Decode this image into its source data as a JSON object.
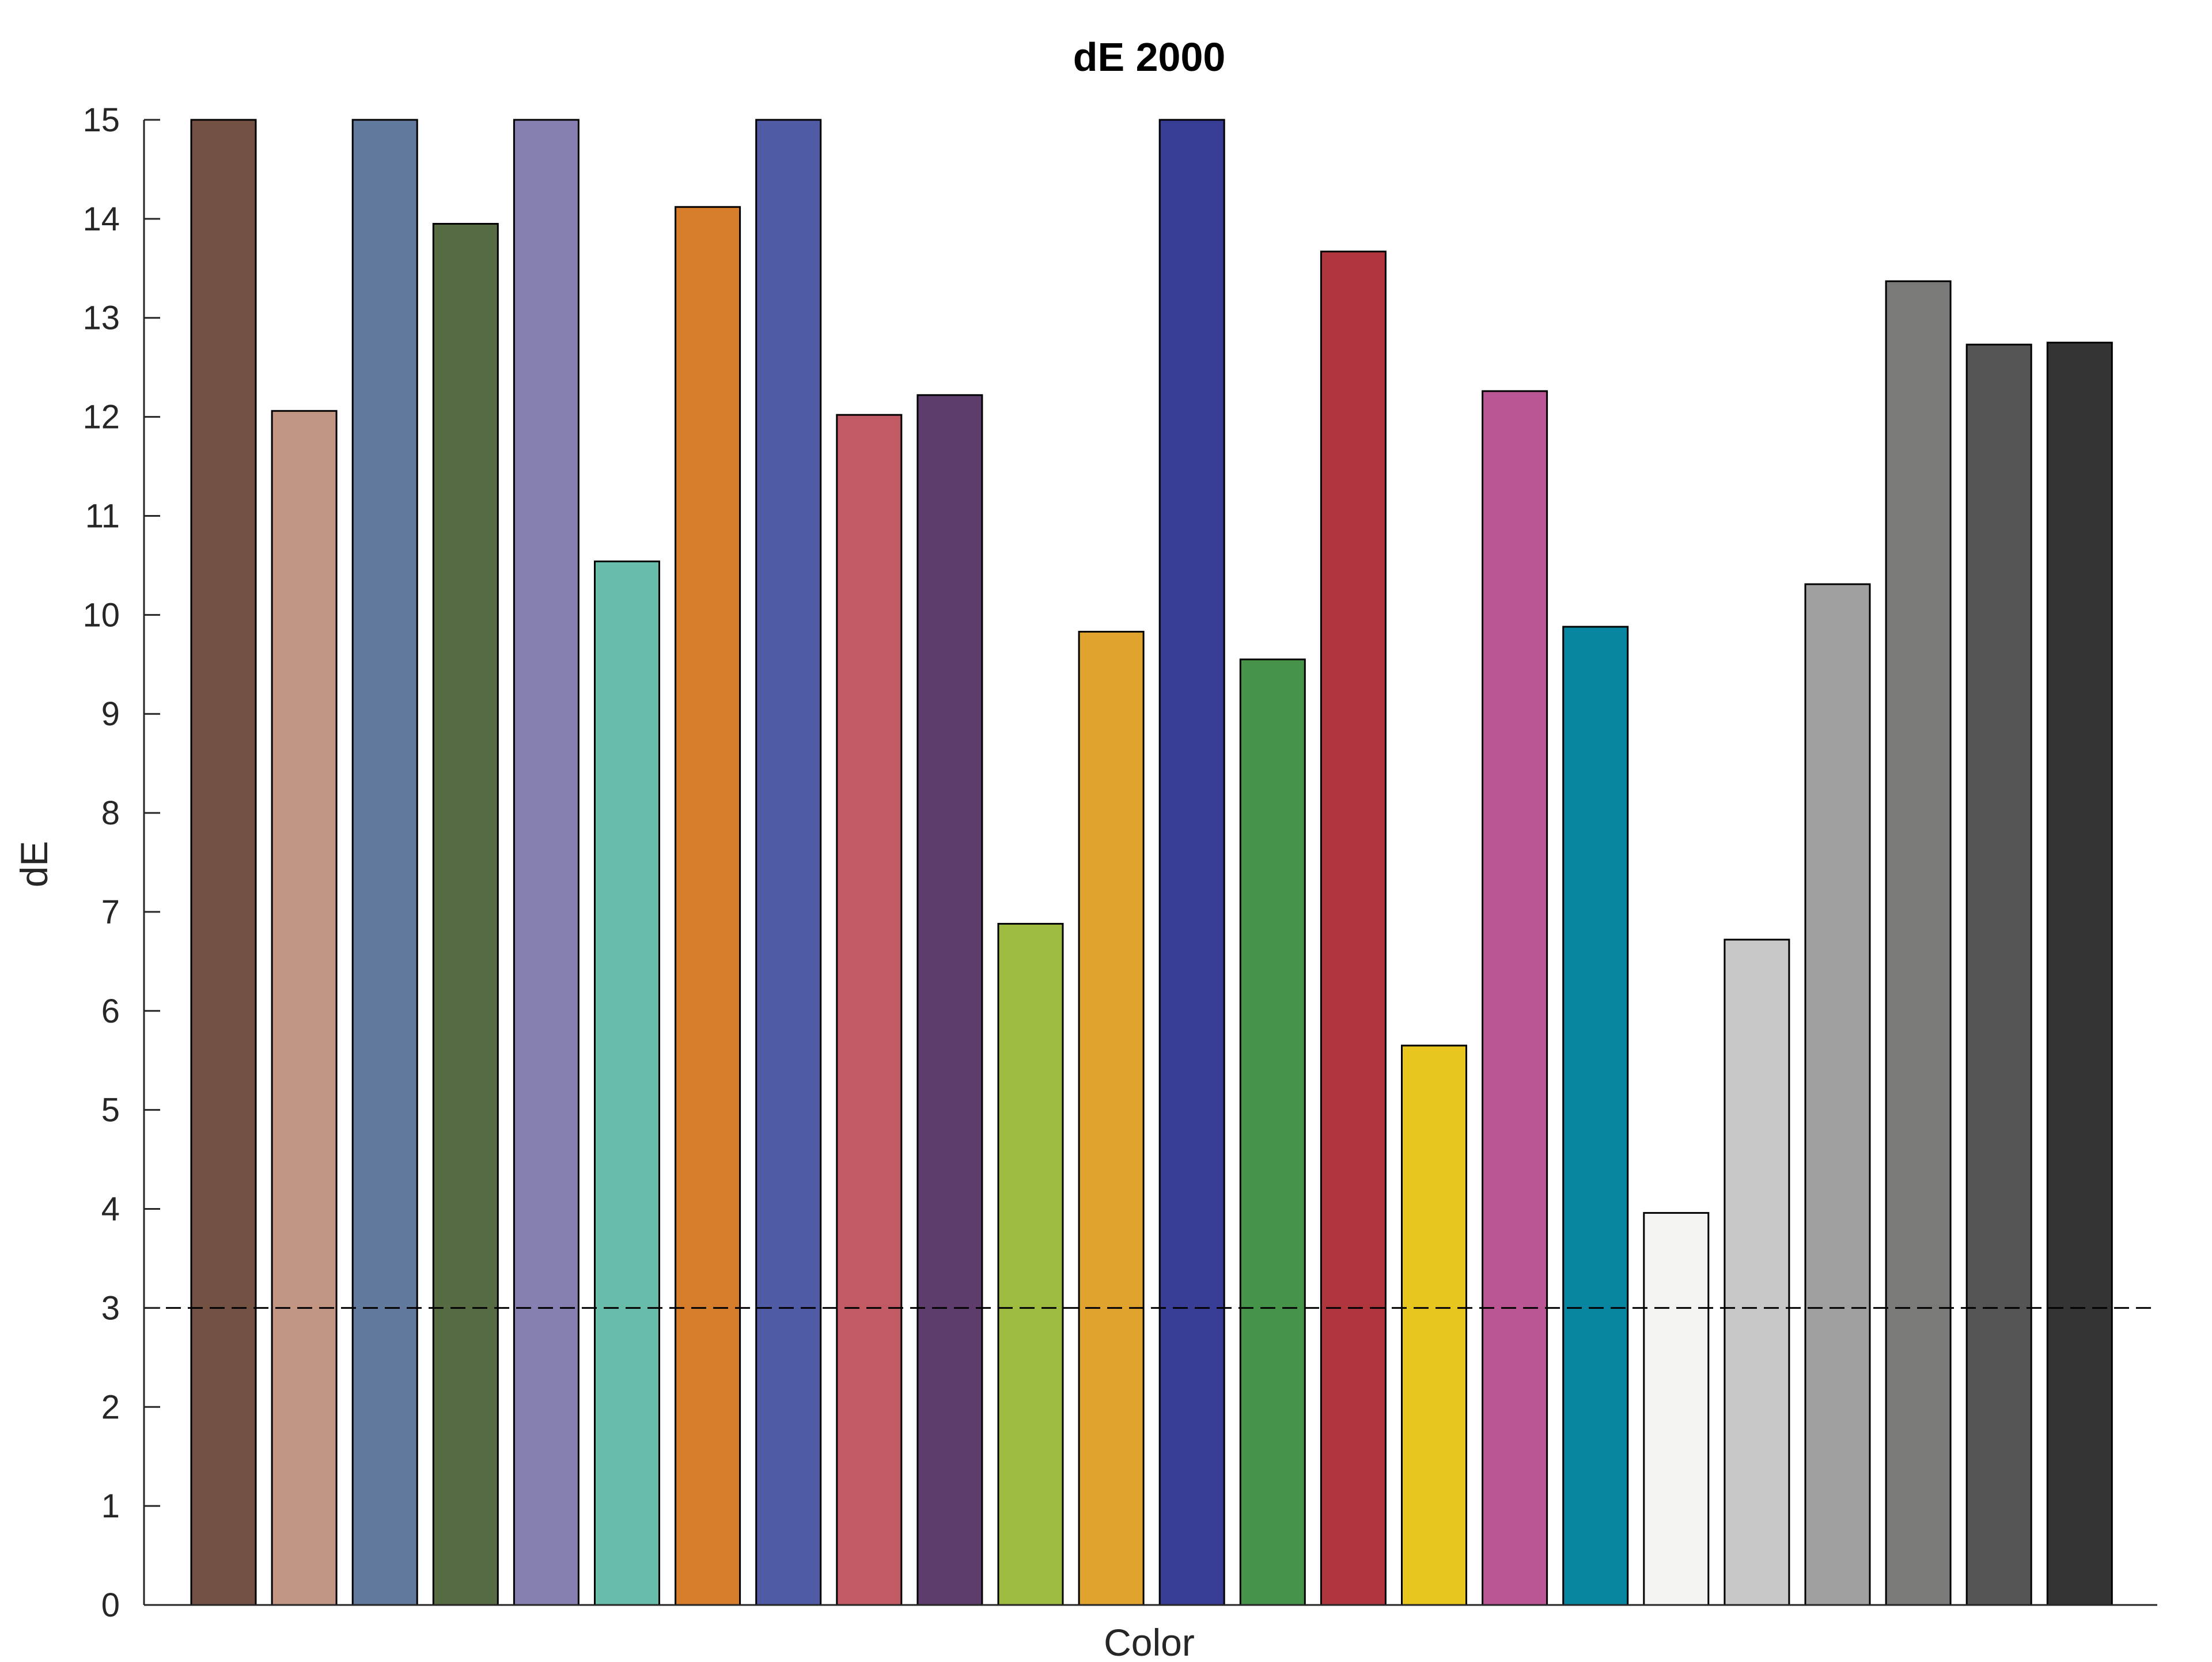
{
  "chart_data": {
    "type": "bar",
    "title": "dE 2000",
    "xlabel": "Color",
    "ylabel": "dE",
    "ylim": [
      0,
      15
    ],
    "yticks": [
      0,
      1,
      2,
      3,
      4,
      5,
      6,
      7,
      8,
      9,
      10,
      11,
      12,
      13,
      14,
      15
    ],
    "threshold": 3,
    "grid": false,
    "values": [
      15,
      12.06,
      15,
      13.95,
      15,
      10.54,
      14.12,
      15,
      12.02,
      12.22,
      6.88,
      9.83,
      15,
      9.55,
      13.67,
      5.65,
      12.26,
      9.88,
      3.96,
      6.72,
      10.31,
      13.37,
      12.73,
      12.75
    ],
    "colors": [
      "#735244",
      "#c29682",
      "#627a9d",
      "#576c43",
      "#8580b1",
      "#67bdaa",
      "#d67e2c",
      "#505ba6",
      "#c15a63",
      "#5e3c6c",
      "#9dbc40",
      "#e0a32e",
      "#383d96",
      "#469449",
      "#af363c",
      "#e7c71f",
      "#bb5695",
      "#0885a1",
      "#f3f3f2",
      "#c8c8c8",
      "#a0a0a0",
      "#7a7a79",
      "#555555",
      "#343434"
    ]
  }
}
